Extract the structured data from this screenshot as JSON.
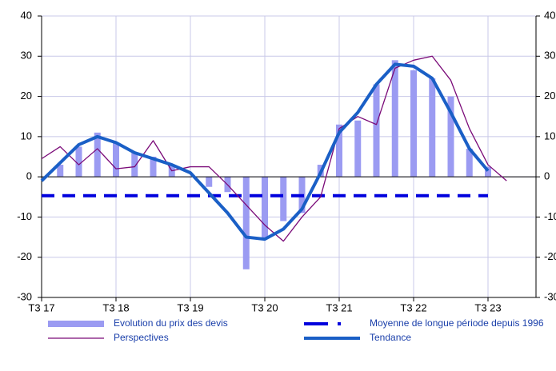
{
  "chart_data": {
    "type": "bar-line",
    "categories": [
      "T3 17",
      null,
      null,
      null,
      "T3 18",
      null,
      null,
      null,
      "T3 19",
      null,
      null,
      null,
      "T3 20",
      null,
      null,
      null,
      "T3 21",
      null,
      null,
      null,
      "T3 22",
      null,
      null,
      null,
      "T3 23",
      null,
      null
    ],
    "series": [
      {
        "name": "Evolution du prix des devis",
        "color": "#9b9bf2",
        "style": "bar",
        "values": [
          null,
          3,
          7.5,
          11,
          8.5,
          6,
          5,
          3,
          null,
          -2.5,
          -3.8,
          -23,
          -15.5,
          -11,
          -9,
          3,
          13,
          14,
          23,
          29,
          26.5,
          24.5,
          20,
          7,
          2.5,
          null,
          null
        ]
      },
      {
        "name": "Moyenne de longue période depuis 1996",
        "color": "#0000dd",
        "style": "dashed",
        "values": [
          -4.7,
          -4.7,
          -4.7,
          -4.7,
          -4.7,
          -4.7,
          -4.7,
          -4.7,
          -4.7,
          -4.7,
          -4.7,
          -4.7,
          -4.7,
          -4.7,
          -4.7,
          -4.7,
          -4.7,
          -4.7,
          -4.7,
          -4.7,
          -4.7,
          -4.7,
          -4.7,
          -4.7,
          -4.7,
          null,
          null
        ]
      },
      {
        "name": "Perspectives",
        "color": "#7a0a78",
        "style": "thin",
        "values": [
          4.5,
          7.5,
          3,
          7,
          2,
          2.5,
          9,
          1.5,
          2.5,
          2.5,
          -2,
          -7,
          -12,
          -16,
          -10,
          -5,
          12,
          15,
          13,
          27,
          29,
          30,
          24,
          12,
          3,
          -1,
          null
        ]
      },
      {
        "name": "Tendance",
        "color": "#1a5fc6",
        "style": "thick",
        "values": [
          -1,
          3.5,
          8,
          10,
          8.5,
          6,
          4.5,
          3,
          1,
          -4,
          -9,
          -15,
          -15.5,
          -13,
          -8,
          1,
          11,
          16,
          23,
          28,
          27.5,
          24.5,
          16,
          7,
          1.5,
          null,
          null
        ]
      }
    ],
    "ylim": [
      -30,
      40
    ],
    "yticks": [
      -30,
      -20,
      -10,
      0,
      10,
      20,
      30,
      40
    ],
    "y2lim": [
      -30,
      40
    ],
    "y2ticks": [
      -30,
      -20,
      -10,
      0,
      10,
      20,
      30,
      40
    ],
    "grid": true
  }
}
